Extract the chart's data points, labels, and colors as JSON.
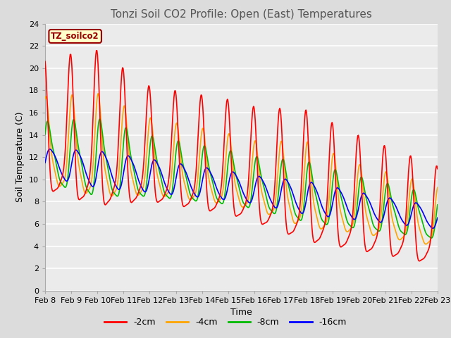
{
  "title": "Tonzi Soil CO2 Profile: Open (East) Temperatures",
  "xlabel": "Time",
  "ylabel": "Soil Temperature (C)",
  "ylim": [
    0,
    24
  ],
  "bg_color": "#dcdcdc",
  "plot_bg": "#ebebeb",
  "legend_label": "TZ_soilco2",
  "series_labels": [
    "-2cm",
    "-4cm",
    "-8cm",
    "-16cm"
  ],
  "series_colors": [
    "#ff0000",
    "#ffa500",
    "#00bb00",
    "#0000ff"
  ],
  "xtick_labels": [
    "Feb 8",
    "Feb 9",
    "Feb 10",
    "Feb 11",
    "Feb 12",
    "Feb 13",
    "Feb 14",
    "Feb 15",
    "Feb 16",
    "Feb 17",
    "Feb 18",
    "Feb 19",
    "Feb 20",
    "Feb 21",
    "Feb 22",
    "Feb 23"
  ],
  "title_fontsize": 11,
  "label_fontsize": 9,
  "tick_fontsize": 8
}
